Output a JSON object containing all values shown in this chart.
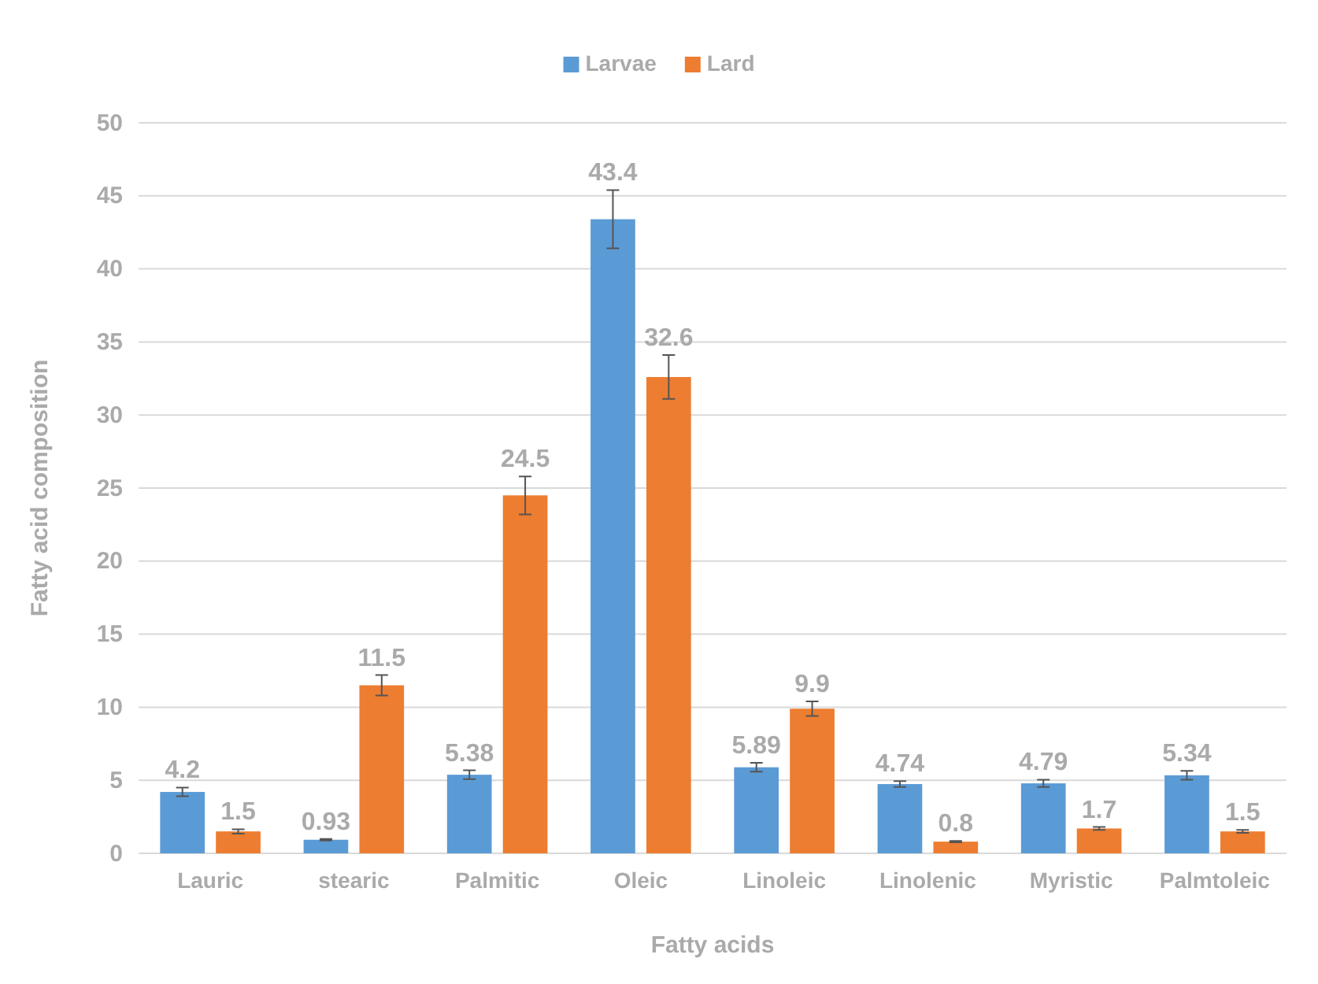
{
  "chart_data": {
    "type": "bar",
    "xlabel": "Fatty acids",
    "ylabel": "Fatty acid composition",
    "categories": [
      "Lauric",
      "stearic",
      "Palmitic",
      "Oleic",
      "Linoleic",
      "Linolenic",
      "Myristic",
      "Palmtoleic"
    ],
    "series": [
      {
        "name": "Larvae",
        "color": "#5b9bd5",
        "values": [
          4.2,
          0.93,
          5.38,
          43.4,
          5.89,
          4.74,
          4.79,
          5.34
        ],
        "errors": [
          0.3,
          0.05,
          0.3,
          2,
          0.3,
          0.2,
          0.25,
          0.3
        ]
      },
      {
        "name": "Lard",
        "color": "#ed7d31",
        "values": [
          1.5,
          11.5,
          24.5,
          32.6,
          9.9,
          0.8,
          1.7,
          1.5
        ],
        "errors": [
          0.15,
          0.7,
          1.3,
          1.5,
          0.5,
          0.05,
          0.1,
          0.1
        ]
      }
    ],
    "ylim": [
      0,
      50
    ],
    "yticks": [
      0,
      5,
      10,
      15,
      20,
      25,
      30,
      35,
      40,
      45,
      50
    ],
    "grid": "y",
    "legend": "top",
    "data_labels": true
  }
}
